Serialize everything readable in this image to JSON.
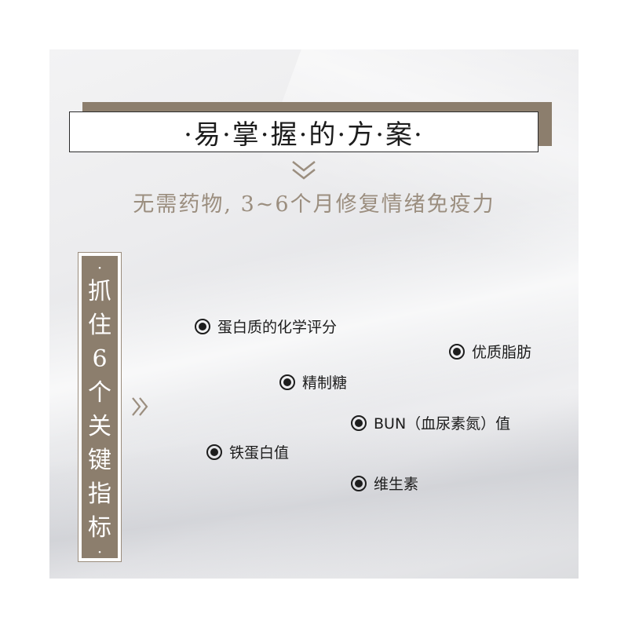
{
  "title": "·易·掌·握·的·方·案·",
  "subtitle": "无需药物, 3~6个月修复情绪免疫力",
  "side_label": {
    "top_dot": "·",
    "chars": [
      "抓",
      "住",
      "6",
      "个",
      "关",
      "键",
      "指",
      "标"
    ],
    "bottom_dot": "·"
  },
  "items": [
    "蛋白质的化学评分",
    "优质脂肪",
    "精制糖",
    "BUN（血尿素氮）值",
    "铁蛋白值",
    "维生素"
  ],
  "colors": {
    "accent_brown": "#8c7e6d",
    "subtitle_tan": "#9b8e7f"
  }
}
